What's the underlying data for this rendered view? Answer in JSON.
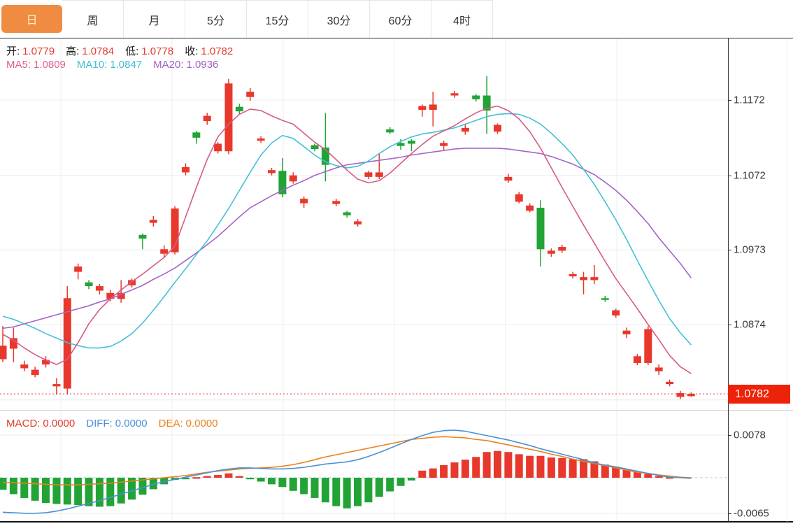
{
  "tabbar": {
    "items": [
      {
        "name": "tab-day",
        "label": "日",
        "active": true
      },
      {
        "name": "tab-week",
        "label": "周",
        "active": false
      },
      {
        "name": "tab-month",
        "label": "月",
        "active": false
      },
      {
        "name": "tab-5min",
        "label": "5分",
        "active": false
      },
      {
        "name": "tab-15min",
        "label": "15分",
        "active": false
      },
      {
        "name": "tab-30min",
        "label": "30分",
        "active": false
      },
      {
        "name": "tab-60min",
        "label": "60分",
        "active": false
      },
      {
        "name": "tab-4hour",
        "label": "4时",
        "active": false
      }
    ],
    "active_bg": "#ef8c42",
    "active_text": "#fdf0c8"
  },
  "legend_ohlc": [
    {
      "label": "开:",
      "value": "1.0779"
    },
    {
      "label": "高:",
      "value": "1.0784"
    },
    {
      "label": "低:",
      "value": "1.0778"
    },
    {
      "label": "收:",
      "value": "1.0782"
    }
  ],
  "legend_ma": [
    {
      "label": "MA5:",
      "value": "1.0809",
      "color": "#e0608e"
    },
    {
      "label": "MA10:",
      "value": "1.0847",
      "color": "#3fbdd3"
    },
    {
      "label": "MA20:",
      "value": "1.0936",
      "color": "#a05fc0"
    }
  ],
  "macd_legend": [
    {
      "label": "MACD:",
      "value": "0.0000",
      "color": "#e23b2e"
    },
    {
      "label": "DIFF:",
      "value": "0.0000",
      "color": "#4a90d9"
    },
    {
      "label": "DEA:",
      "value": "0.0000",
      "color": "#e8821c"
    }
  ],
  "price_axis": {
    "ticks": [
      {
        "label": "1.1172",
        "value": 1.1172
      },
      {
        "label": "1.1072",
        "value": 1.1072
      },
      {
        "label": "1.0973",
        "value": 1.0973
      },
      {
        "label": "1.0874",
        "value": 1.0874
      },
      {
        "label": "1.0774",
        "value": 1.0774
      }
    ],
    "current": {
      "label": "1.0782",
      "value": 1.0782,
      "badge_color": "#ee2208"
    }
  },
  "macd_axis": {
    "ticks": [
      {
        "label": "0.0078",
        "value": 0.0078
      },
      {
        "label": "-0.0065",
        "value": -0.0065
      }
    ]
  },
  "colors": {
    "up": "#e8382c",
    "down": "#22a336",
    "ma5": "#d65c82",
    "ma10": "#45c0d6",
    "ma20": "#a465c8",
    "diff": "#4a90d9",
    "dea": "#e8821c",
    "grid": "#ececec",
    "dotted_price": "#e8362a",
    "zero_dash": "#a9cfe5",
    "ohlc_value": "#e23b2e",
    "ohlc_label": "#1a1a1a"
  },
  "chart_data": {
    "type": "candlestick",
    "title": "",
    "ylim": [
      1.077,
      1.121
    ],
    "y_gridlines": [
      1.1172,
      1.1072,
      1.0973,
      1.0874,
      1.0774
    ],
    "current_price": 1.0782,
    "candles_ohlc": [
      [
        1.0828,
        1.0872,
        1.0824,
        1.0846
      ],
      [
        1.0842,
        1.087,
        1.0824,
        1.0856
      ],
      [
        1.0816,
        1.0826,
        1.0812,
        1.0821
      ],
      [
        1.0807,
        1.0818,
        1.0804,
        1.0814
      ],
      [
        1.0821,
        1.0832,
        1.0817,
        1.0827
      ],
      [
        1.0792,
        1.0803,
        1.0781,
        1.0795
      ],
      [
        1.0789,
        1.0925,
        1.0781,
        1.0909
      ],
      [
        1.0944,
        1.0955,
        1.0934,
        1.0951
      ],
      [
        1.093,
        1.0933,
        1.0921,
        1.0925
      ],
      [
        1.0919,
        1.0928,
        1.0914,
        1.0925
      ],
      [
        1.0908,
        1.092,
        1.0905,
        1.0916
      ],
      [
        1.0908,
        1.0933,
        1.0903,
        1.0916
      ],
      [
        1.0926,
        1.0935,
        1.0923,
        1.0933
      ],
      [
        1.0993,
        1.0995,
        1.0974,
        1.0988
      ],
      [
        1.1009,
        1.1018,
        1.1004,
        1.1013
      ],
      [
        1.0968,
        1.0979,
        1.0964,
        1.0974
      ],
      [
        1.097,
        1.1031,
        1.0967,
        1.1028
      ],
      [
        1.1076,
        1.1088,
        1.1072,
        1.1083
      ],
      [
        1.1129,
        1.1131,
        1.1114,
        1.1122
      ],
      [
        1.1144,
        1.1155,
        1.1139,
        1.1151
      ],
      [
        1.1104,
        1.1116,
        1.1101,
        1.1114
      ],
      [
        1.1104,
        1.12,
        1.11,
        1.1194
      ],
      [
        1.1163,
        1.1167,
        1.1153,
        1.1157
      ],
      [
        1.1176,
        1.1188,
        1.1171,
        1.1183
      ],
      [
        1.1118,
        1.1124,
        1.1115,
        1.1121
      ],
      [
        1.1075,
        1.1082,
        1.1072,
        1.1079
      ],
      [
        1.1078,
        1.1095,
        1.1043,
        1.1047
      ],
      [
        1.1064,
        1.1076,
        1.1061,
        1.1072
      ],
      [
        1.1035,
        1.1044,
        1.1029,
        1.1041
      ],
      [
        1.1112,
        1.1114,
        1.1104,
        1.1107
      ],
      [
        1.1109,
        1.1155,
        1.1064,
        1.1086
      ],
      [
        1.1034,
        1.1041,
        1.1031,
        1.1038
      ],
      [
        1.1023,
        1.1025,
        1.1016,
        1.1019
      ],
      [
        1.1007,
        1.1014,
        1.1004,
        1.1011
      ],
      [
        1.107,
        1.1078,
        1.1067,
        1.1076
      ],
      [
        1.107,
        1.1101,
        1.1067,
        1.1076
      ],
      [
        1.1133,
        1.1136,
        1.1127,
        1.1129
      ],
      [
        1.1115,
        1.112,
        1.1106,
        1.1111
      ],
      [
        1.1118,
        1.112,
        1.1104,
        1.1114
      ],
      [
        1.1159,
        1.1166,
        1.115,
        1.1164
      ],
      [
        1.1159,
        1.1183,
        1.1137,
        1.1166
      ],
      [
        1.1111,
        1.1118,
        1.1106,
        1.1115
      ],
      [
        1.1178,
        1.1184,
        1.1175,
        1.1181
      ],
      [
        1.113,
        1.114,
        1.1126,
        1.1135
      ],
      [
        1.1178,
        1.118,
        1.117,
        1.1173
      ],
      [
        1.1178,
        1.1204,
        1.1127,
        1.1158
      ],
      [
        1.113,
        1.1141,
        1.1127,
        1.1139
      ],
      [
        1.1065,
        1.1074,
        1.1062,
        1.107
      ],
      [
        1.1037,
        1.105,
        1.1035,
        1.1047
      ],
      [
        1.1025,
        1.1035,
        1.1023,
        1.1032
      ],
      [
        1.1029,
        1.1039,
        1.0951,
        1.0974
      ],
      [
        1.0968,
        1.0975,
        1.0964,
        1.0972
      ],
      [
        1.0972,
        1.098,
        1.0969,
        1.0977
      ],
      [
        1.0938,
        1.0944,
        1.0935,
        1.0941
      ],
      [
        1.0933,
        1.0944,
        1.0914,
        1.0937
      ],
      [
        1.0933,
        1.0953,
        1.0928,
        1.0937
      ],
      [
        1.0909,
        1.0912,
        1.0904,
        1.0907
      ],
      [
        1.0886,
        1.0895,
        1.0883,
        1.0893
      ],
      [
        1.0861,
        1.087,
        1.0856,
        1.0866
      ],
      [
        1.0823,
        1.0835,
        1.082,
        1.0832
      ],
      [
        1.0823,
        1.0872,
        1.082,
        1.0868
      ],
      [
        1.0812,
        1.0821,
        1.0807,
        1.0817
      ],
      [
        1.0795,
        1.0801,
        1.0792,
        1.0798
      ],
      [
        1.0778,
        1.0786,
        1.0775,
        1.0783
      ],
      [
        1.0779,
        1.0784,
        1.0778,
        1.0782
      ]
    ],
    "ma5": [
      1.0861,
      1.0853,
      1.0843,
      1.0834,
      1.0827,
      1.0821,
      1.0828,
      1.085,
      1.0875,
      1.0894,
      1.0908,
      1.092,
      1.0931,
      1.0941,
      1.0952,
      1.0963,
      1.0978,
      1.1017,
      1.1056,
      1.1093,
      1.1123,
      1.114,
      1.1153,
      1.116,
      1.1158,
      1.1151,
      1.1145,
      1.114,
      1.1128,
      1.1116,
      1.1106,
      1.1093,
      1.1079,
      1.1067,
      1.1062,
      1.1065,
      1.1075,
      1.1088,
      1.1101,
      1.1113,
      1.1124,
      1.1131,
      1.1138,
      1.1147,
      1.1155,
      1.1161,
      1.1164,
      1.1158,
      1.1147,
      1.113,
      1.1108,
      1.1082,
      1.1056,
      1.1031,
      1.1006,
      1.0982,
      1.0958,
      1.0935,
      1.0915,
      1.0895,
      1.0874,
      1.0854,
      1.0833,
      1.0818,
      1.0809
    ],
    "ma10": [
      1.0885,
      1.0881,
      1.0875,
      1.0869,
      1.0862,
      1.0856,
      1.085,
      1.0846,
      1.0843,
      1.0843,
      1.0845,
      1.0852,
      1.0862,
      1.0876,
      1.0893,
      1.0911,
      1.093,
      1.0948,
      1.0967,
      1.0985,
      1.1006,
      1.1028,
      1.1052,
      1.1076,
      1.1099,
      1.1115,
      1.1125,
      1.1121,
      1.111,
      1.1099,
      1.109,
      1.1085,
      1.1082,
      1.1084,
      1.1091,
      1.1101,
      1.111,
      1.1117,
      1.1123,
      1.1127,
      1.1129,
      1.1132,
      1.1135,
      1.114,
      1.1145,
      1.115,
      1.1153,
      1.1154,
      1.1153,
      1.1148,
      1.114,
      1.1128,
      1.1114,
      1.1099,
      1.108,
      1.106,
      1.1037,
      1.1013,
      1.0987,
      1.0959,
      1.0932,
      1.0906,
      1.0882,
      1.0863,
      1.0847
    ],
    "ma20": [
      1.0869,
      1.0871,
      1.0875,
      1.0879,
      1.0883,
      1.0887,
      1.0891,
      1.0895,
      1.0899,
      1.0904,
      1.0908,
      1.0914,
      1.092,
      1.0926,
      1.0934,
      1.0941,
      1.0949,
      1.0959,
      1.0969,
      1.098,
      1.0991,
      1.1004,
      1.1017,
      1.1029,
      1.1037,
      1.1045,
      1.1052,
      1.1059,
      1.1065,
      1.1072,
      1.1077,
      1.1082,
      1.1086,
      1.1088,
      1.109,
      1.1092,
      1.1094,
      1.1096,
      1.1099,
      1.1101,
      1.1103,
      1.1105,
      1.1107,
      1.1108,
      1.1108,
      1.1108,
      1.1108,
      1.1107,
      1.1105,
      1.1103,
      1.1101,
      1.1097,
      1.1092,
      1.1087,
      1.108,
      1.1073,
      1.1063,
      1.1052,
      1.1039,
      1.1024,
      1.1008,
      1.0989,
      1.0972,
      1.0955,
      1.0936
    ],
    "macd": {
      "ylim": [
        -0.0065,
        0.0078
      ],
      "histogram": [
        -0.0022,
        -0.003,
        -0.0037,
        -0.0042,
        -0.0046,
        -0.0048,
        -0.0049,
        -0.005,
        -0.0052,
        -0.0053,
        -0.0052,
        -0.0047,
        -0.004,
        -0.0031,
        -0.0021,
        -0.0012,
        -0.0004,
        -0.0001,
        0.0001,
        0.0003,
        0.0005,
        0.0008,
        0.0003,
        -0.0001,
        -0.0007,
        -0.0012,
        -0.0017,
        -0.0024,
        -0.003,
        -0.0037,
        -0.0045,
        -0.0052,
        -0.0056,
        -0.0052,
        -0.0045,
        -0.0035,
        -0.0025,
        -0.0015,
        -0.0005,
        0.0013,
        0.0017,
        0.0023,
        0.0028,
        0.0033,
        0.0038,
        0.0047,
        0.0049,
        0.0047,
        0.0043,
        0.004,
        0.004,
        0.0037,
        0.0036,
        0.0034,
        0.0034,
        0.003,
        0.0024,
        0.002,
        0.0014,
        0.0011,
        0.0007,
        0.0003,
        0.0001,
        0.0,
        0.0
      ],
      "diff": [
        -0.0063,
        -0.0064,
        -0.0065,
        -0.0065,
        -0.0064,
        -0.0061,
        -0.0057,
        -0.0052,
        -0.0047,
        -0.0042,
        -0.0036,
        -0.003,
        -0.0024,
        -0.0018,
        -0.0012,
        -0.0007,
        -0.0003,
        0.0001,
        0.0005,
        0.0009,
        0.0013,
        0.0016,
        0.0018,
        0.0018,
        0.0017,
        0.0016,
        0.0016,
        0.0017,
        0.0019,
        0.0022,
        0.0025,
        0.0027,
        0.0029,
        0.0033,
        0.0039,
        0.0046,
        0.0054,
        0.0062,
        0.007,
        0.0077,
        0.0083,
        0.0086,
        0.0087,
        0.0085,
        0.0081,
        0.0077,
        0.0073,
        0.0069,
        0.0064,
        0.0059,
        0.0053,
        0.0048,
        0.0043,
        0.0038,
        0.0033,
        0.0027,
        0.0023,
        0.002,
        0.0016,
        0.0012,
        0.0008,
        0.0004,
        0.0001,
        0.0,
        -0.0001
      ],
      "dea": [
        -0.0009,
        -0.0009,
        -0.001,
        -0.0011,
        -0.0012,
        -0.0013,
        -0.0013,
        -0.0013,
        -0.0012,
        -0.0011,
        -0.001,
        -0.0008,
        -0.0006,
        -0.0004,
        -0.0002,
        0.0,
        0.0002,
        0.0004,
        0.0007,
        0.001,
        0.0012,
        0.0014,
        0.0016,
        0.0017,
        0.0018,
        0.0019,
        0.0021,
        0.0024,
        0.0028,
        0.0033,
        0.0038,
        0.0042,
        0.0046,
        0.005,
        0.0054,
        0.0058,
        0.0062,
        0.0066,
        0.007,
        0.0072,
        0.0074,
        0.0075,
        0.0074,
        0.0073,
        0.007,
        0.0068,
        0.0064,
        0.006,
        0.0056,
        0.0052,
        0.0048,
        0.0043,
        0.0039,
        0.0034,
        0.003,
        0.0026,
        0.0022,
        0.0018,
        0.0014,
        0.001,
        0.0008,
        0.0005,
        0.0003,
        0.0001,
        0.0
      ]
    }
  }
}
